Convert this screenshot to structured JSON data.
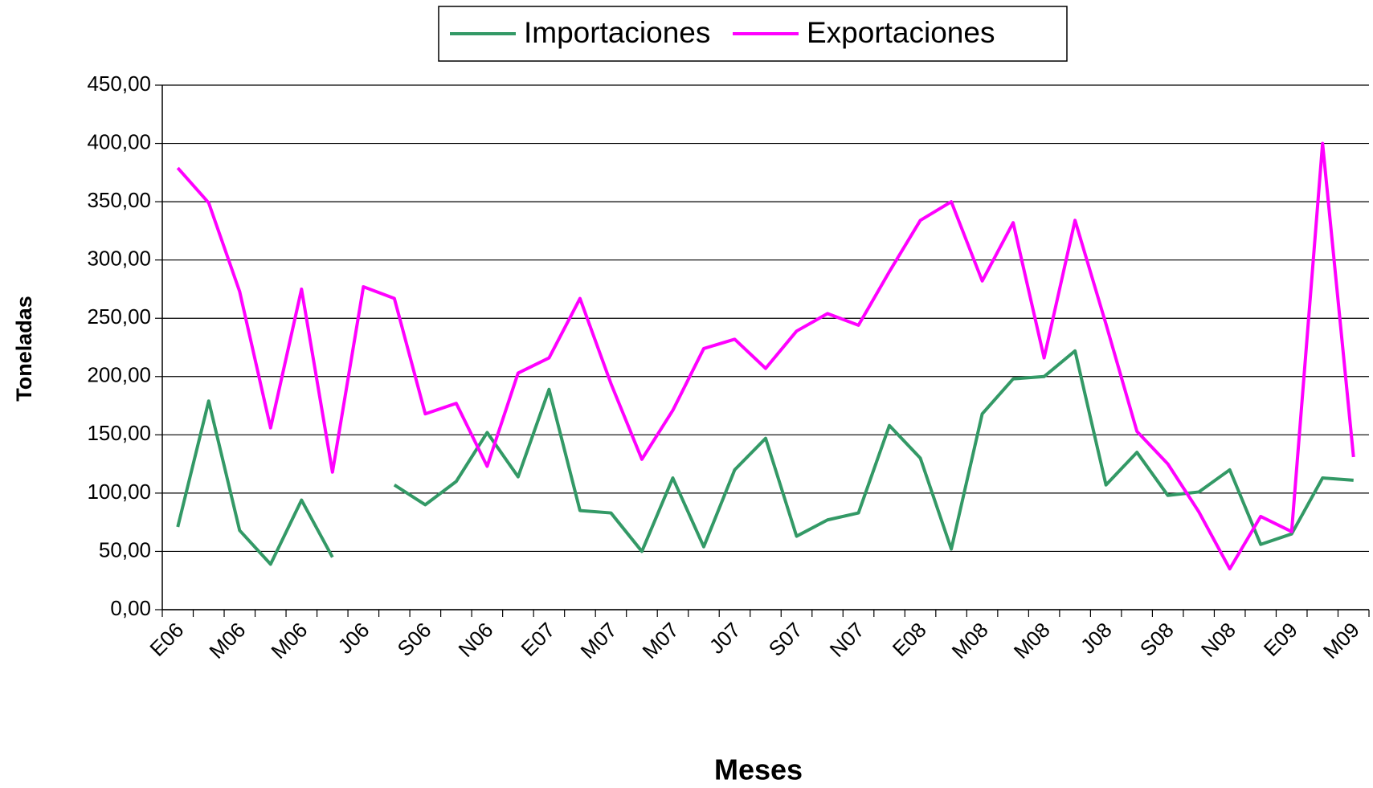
{
  "chart_data": {
    "type": "line",
    "x_label": "Meses",
    "y_label": "Toneladas",
    "categories": [
      "E06",
      null,
      "M06",
      null,
      "M06",
      null,
      "J06",
      null,
      "S06",
      null,
      "N06",
      null,
      "E07",
      null,
      "M07",
      null,
      "M07",
      null,
      "J07",
      null,
      "S07",
      null,
      "N07",
      null,
      "E08",
      null,
      "M08",
      null,
      "M08",
      null,
      "J08",
      null,
      "S08",
      null,
      "N08",
      null,
      "E09",
      null,
      "M09"
    ],
    "series": [
      {
        "name": "Importaciones",
        "color": "#339966",
        "values": [
          71,
          179,
          68,
          39,
          94,
          45,
          null,
          107,
          90,
          110,
          152,
          114,
          189,
          85,
          83,
          50,
          113,
          54,
          120,
          147,
          63,
          77,
          83,
          158,
          130,
          52,
          168,
          198,
          200,
          222,
          107,
          135,
          98,
          101,
          120,
          56,
          65,
          113,
          111
        ]
      },
      {
        "name": "Exportaciones",
        "color": "#ff00ff",
        "values": [
          379,
          349,
          273,
          156,
          275,
          118,
          277,
          267,
          168,
          177,
          123,
          203,
          216,
          267,
          194,
          129,
          171,
          224,
          232,
          207,
          239,
          254,
          244,
          290,
          334,
          350,
          282,
          332,
          216,
          334,
          245,
          153,
          125,
          84,
          35,
          80,
          67,
          400,
          131
        ]
      }
    ],
    "ylim": [
      0,
      450
    ],
    "yticks": [
      {
        "value": 0,
        "label": "0,00"
      },
      {
        "value": 50,
        "label": "50,00"
      },
      {
        "value": 100,
        "label": "100,00"
      },
      {
        "value": 150,
        "label": "150,00"
      },
      {
        "value": 200,
        "label": "200,00"
      },
      {
        "value": 250,
        "label": "250,00"
      },
      {
        "value": 300,
        "label": "300,00"
      },
      {
        "value": 350,
        "label": "350,00"
      },
      {
        "value": 400,
        "label": "400,00"
      },
      {
        "value": 450,
        "label": "450,00"
      }
    ],
    "grid": true,
    "legend": "top"
  }
}
